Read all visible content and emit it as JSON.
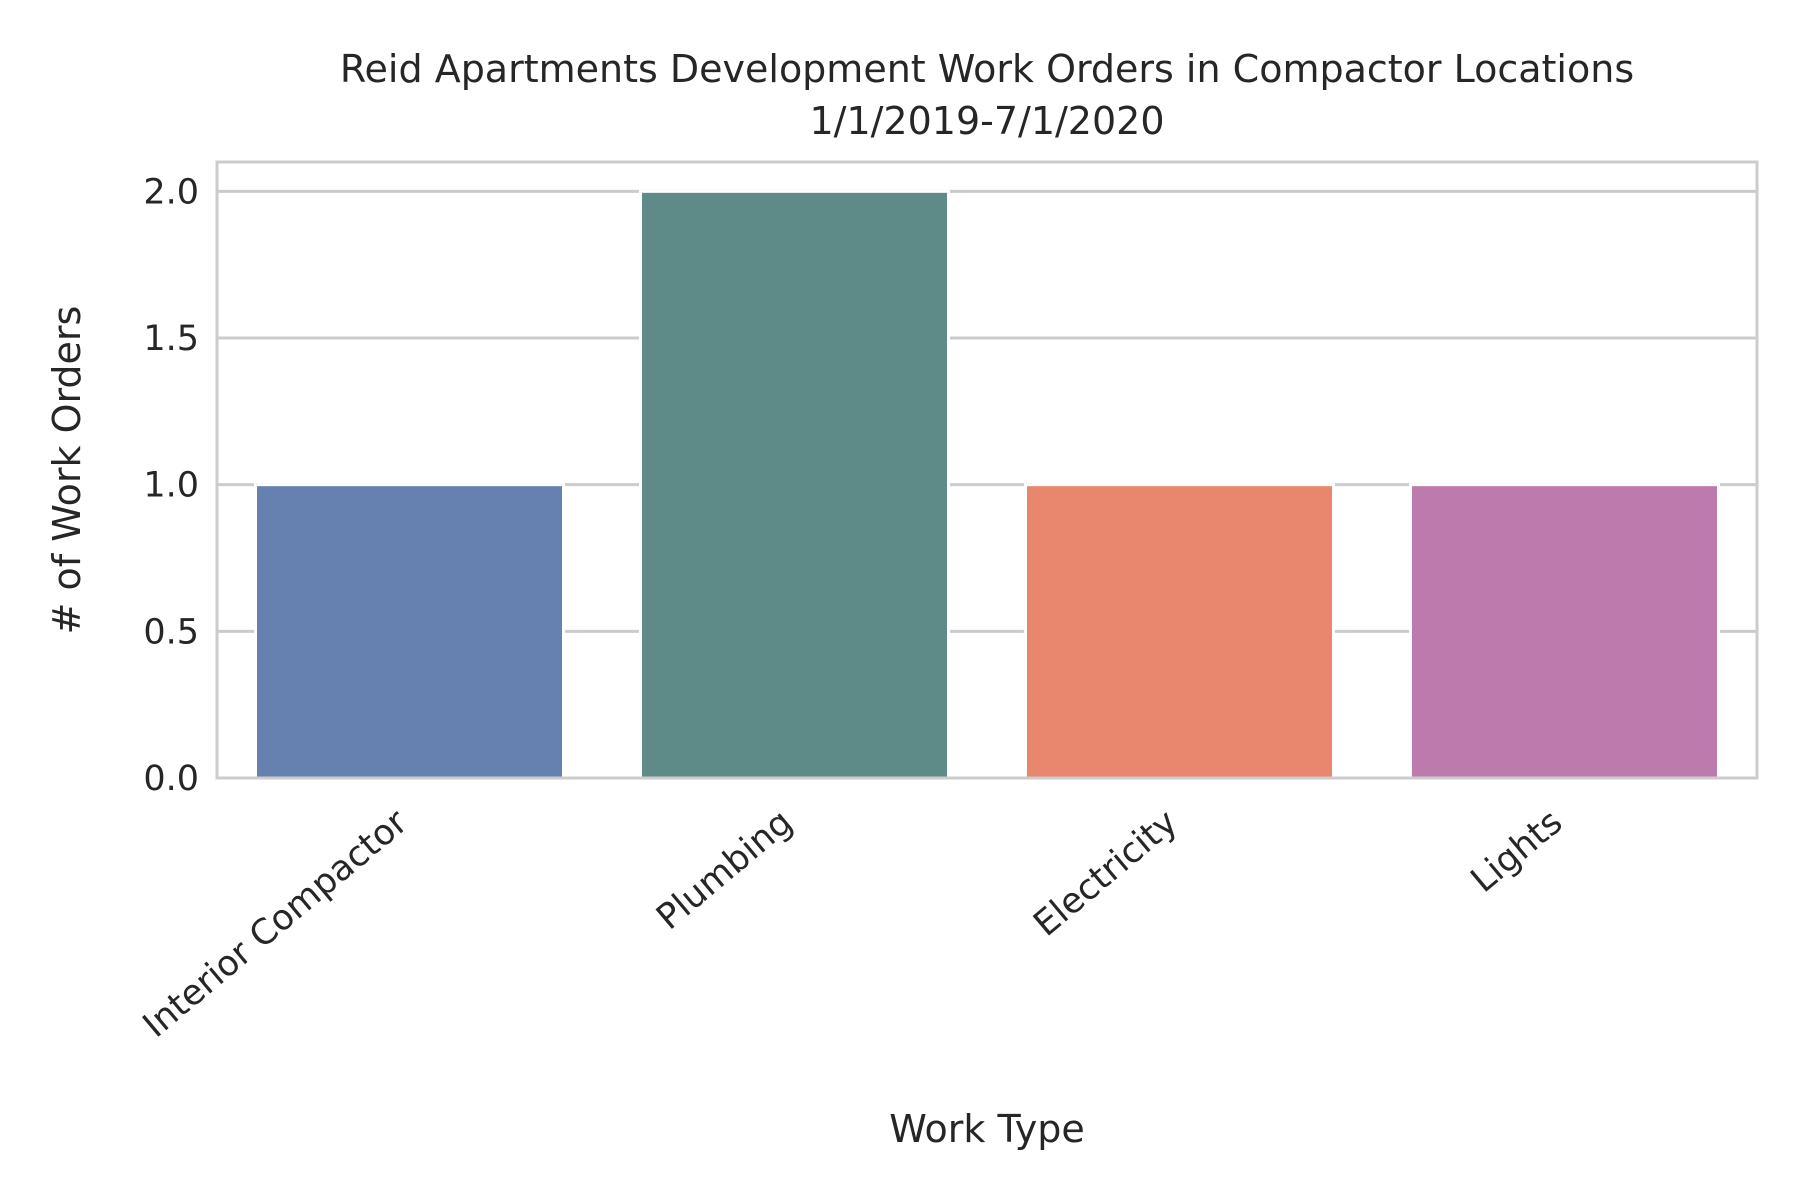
{
  "chart_data": {
    "type": "bar",
    "title_lines": [
      "Reid Apartments Development Work Orders in Compactor Locations",
      "1/1/2019-7/1/2020"
    ],
    "xlabel": "Work Type",
    "ylabel": "# of Work Orders",
    "categories": [
      "Interior Compactor",
      "Plumbing",
      "Electricity",
      "Lights"
    ],
    "values": [
      1,
      2,
      1,
      1
    ],
    "colors": [
      "#6680b0",
      "#5e8a87",
      "#e8866e",
      "#bd7aad"
    ],
    "ylim": [
      0,
      2.1
    ],
    "yticks": [
      0.0,
      0.5,
      1.0,
      1.5,
      2.0
    ],
    "ytick_labels": [
      "0.0",
      "0.5",
      "1.0",
      "1.5",
      "2.0"
    ],
    "grid": true,
    "background": "#ffffff",
    "grid_color": "#cccccc"
  }
}
